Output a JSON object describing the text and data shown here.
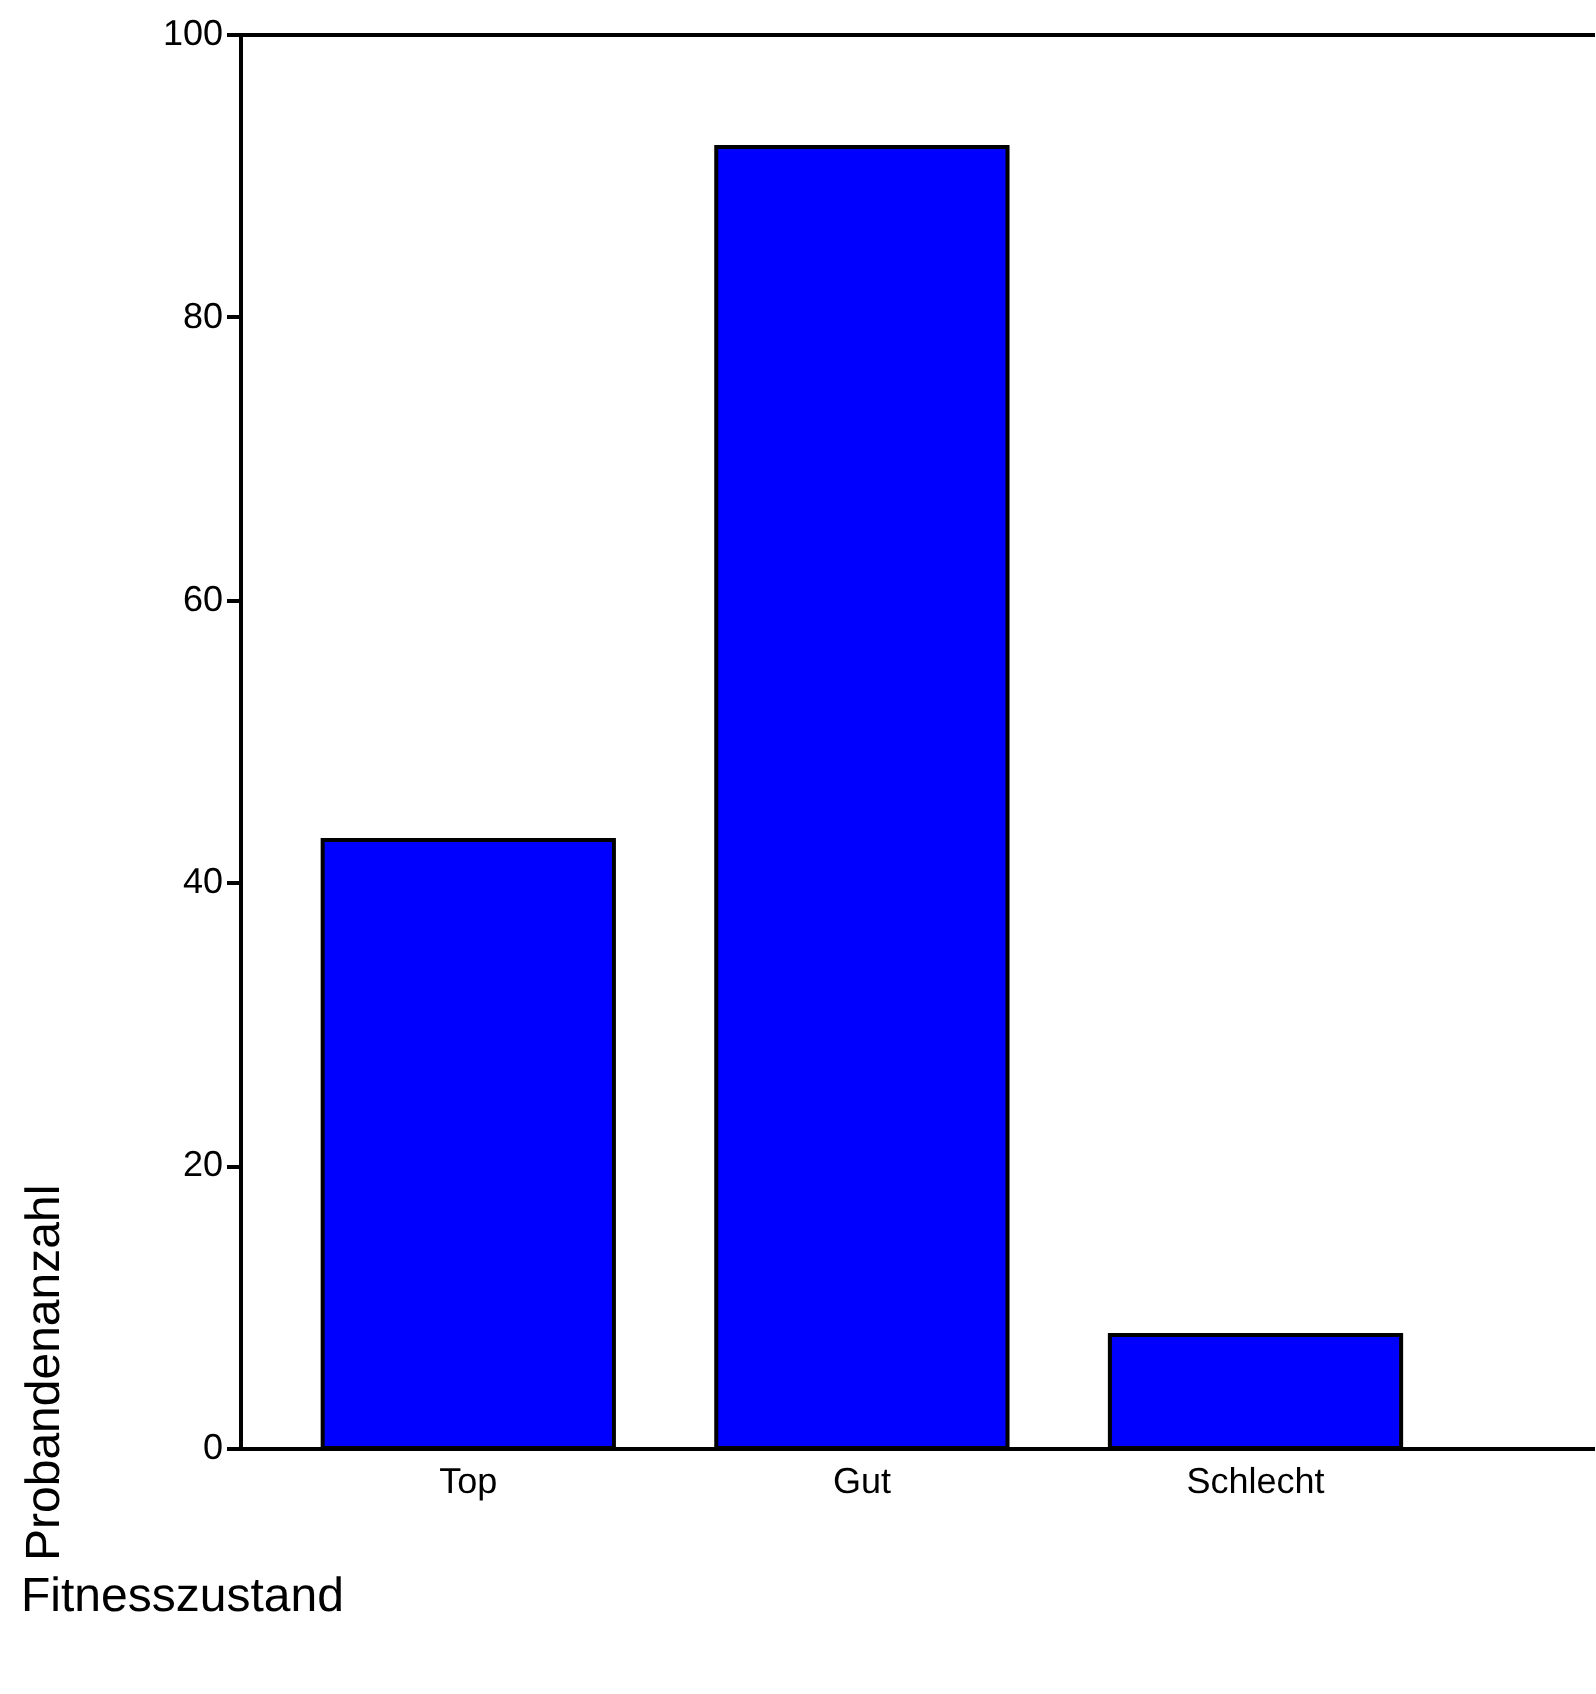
{
  "chart_data": {
    "type": "bar",
    "xlabel": "Fitnesszustand",
    "ylabel": "Probandenanzahl",
    "categories": [
      "Top",
      "Gut",
      "Schlecht"
    ],
    "values": [
      43,
      92,
      8
    ],
    "color": "#0000ff",
    "ylim": [
      0,
      100
    ],
    "yticks": [
      0,
      20,
      40,
      60,
      80,
      100
    ],
    "grid": false
  }
}
